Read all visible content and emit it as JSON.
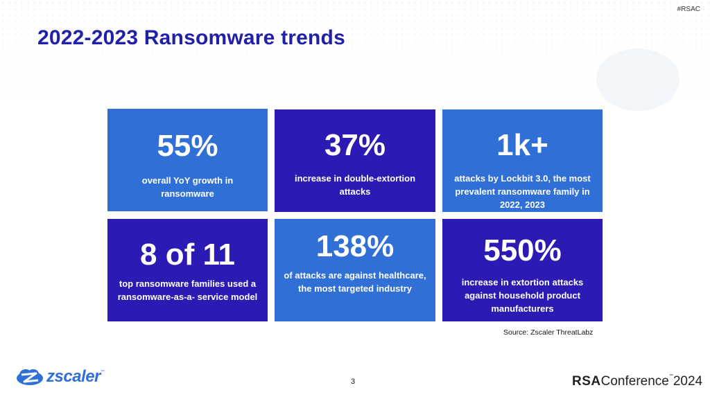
{
  "hashtag": "#RSAC",
  "title": "2022-2023 Ransomware trends",
  "tiles": [
    {
      "stat": "55%",
      "desc": "overall YoY growth in ransomware"
    },
    {
      "stat": "37%",
      "desc": "increase in double-extortion attacks"
    },
    {
      "stat": "1k+",
      "desc": "attacks by Lockbit 3.0, the most prevalent ransomware family in 2022, 2023"
    },
    {
      "stat": "8 of 11",
      "desc": "top ransomware families used a ransomware-as-a- service model"
    },
    {
      "stat": "138%",
      "desc": "of attacks are against healthcare, the most targeted industry"
    },
    {
      "stat": "550%",
      "desc": "increase in extortion attacks against household product manufacturers"
    }
  ],
  "source": "Source: Zscaler ThreatLabz",
  "page_number": "3",
  "logos": {
    "zscaler": {
      "text": "zscaler",
      "tm": "™"
    },
    "rsa": {
      "rsa": "RSA",
      "conference": "Conference",
      "tm": "™",
      "year": "2024"
    }
  },
  "colors": {
    "title": "#2020a8",
    "tile_light": "#2f6fd6",
    "tile_dark": "#2b1ab3",
    "zscaler_blue": "#2e6fd8"
  }
}
